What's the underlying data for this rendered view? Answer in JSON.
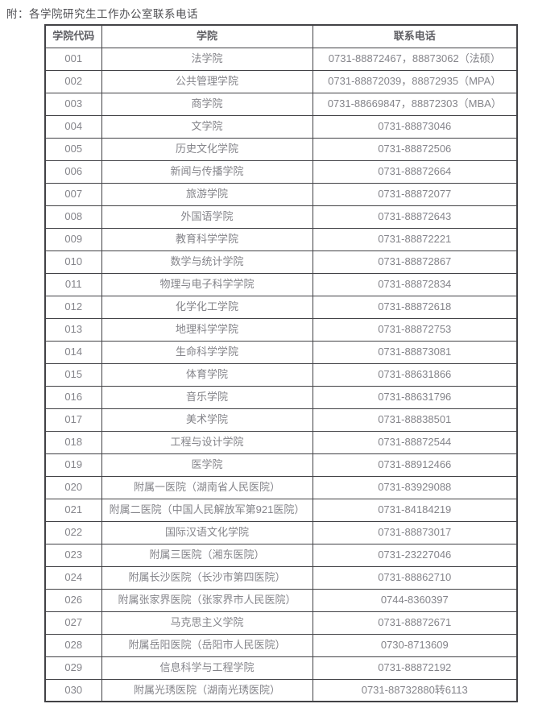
{
  "page_title": "附：各学院研究生工作办公室联系电话",
  "table": {
    "columns": [
      "学院代码",
      "学院",
      "联系电话"
    ],
    "rows": [
      {
        "code": "001",
        "college": "法学院",
        "phone": "0731-88872467，88873062（法硕）"
      },
      {
        "code": "002",
        "college": "公共管理学院",
        "phone": "0731-88872039，88872935（MPA）"
      },
      {
        "code": "003",
        "college": "商学院",
        "phone": "0731-88669847，88872303（MBA）"
      },
      {
        "code": "004",
        "college": "文学院",
        "phone": "0731-88873046"
      },
      {
        "code": "005",
        "college": "历史文化学院",
        "phone": "0731-88872506"
      },
      {
        "code": "006",
        "college": "新闻与传播学院",
        "phone": "0731-88872664"
      },
      {
        "code": "007",
        "college": "旅游学院",
        "phone": "0731-88872077"
      },
      {
        "code": "008",
        "college": "外国语学院",
        "phone": "0731-88872643"
      },
      {
        "code": "009",
        "college": "教育科学学院",
        "phone": "0731-88872221"
      },
      {
        "code": "010",
        "college": "数学与统计学院",
        "phone": "0731-88872867"
      },
      {
        "code": "011",
        "college": "物理与电子科学学院",
        "phone": "0731-88872834"
      },
      {
        "code": "012",
        "college": "化学化工学院",
        "phone": "0731-88872618"
      },
      {
        "code": "013",
        "college": "地理科学学院",
        "phone": "0731-88872753"
      },
      {
        "code": "014",
        "college": "生命科学学院",
        "phone": "0731-88873081"
      },
      {
        "code": "015",
        "college": "体育学院",
        "phone": "0731-88631866"
      },
      {
        "code": "016",
        "college": "音乐学院",
        "phone": "0731-88631796"
      },
      {
        "code": "017",
        "college": "美术学院",
        "phone": "0731-88838501"
      },
      {
        "code": "018",
        "college": "工程与设计学院",
        "phone": "0731-88872544"
      },
      {
        "code": "019",
        "college": "医学院",
        "phone": "0731-88912466"
      },
      {
        "code": "020",
        "college": "附属一医院（湖南省人民医院）",
        "phone": "0731-83929088"
      },
      {
        "code": "021",
        "college": "附属二医院（中国人民解放军第921医院）",
        "phone": "0731-84184219"
      },
      {
        "code": "022",
        "college": "国际汉语文化学院",
        "phone": "0731-88873017"
      },
      {
        "code": "023",
        "college": "附属三医院（湘东医院）",
        "phone": "0731-23227046"
      },
      {
        "code": "024",
        "college": "附属长沙医院（长沙市第四医院）",
        "phone": "0731-88862710"
      },
      {
        "code": "026",
        "college": "附属张家界医院（张家界市人民医院）",
        "phone": "0744-8360397"
      },
      {
        "code": "027",
        "college": "马克思主义学院",
        "phone": "0731-88872671"
      },
      {
        "code": "028",
        "college": "附属岳阳医院（岳阳市人民医院）",
        "phone": "0730-8713609"
      },
      {
        "code": "029",
        "college": "信息科学与工程学院",
        "phone": "0731-88872192"
      },
      {
        "code": "030",
        "college": "附属光琇医院（湖南光琇医院）",
        "phone": "0731-88732880转6113"
      }
    ]
  },
  "colors": {
    "background": "#ffffff",
    "border": "#424246",
    "title_text": "#4f4f53",
    "header_text": "#5f5f64",
    "cell_text": "#84848a"
  }
}
